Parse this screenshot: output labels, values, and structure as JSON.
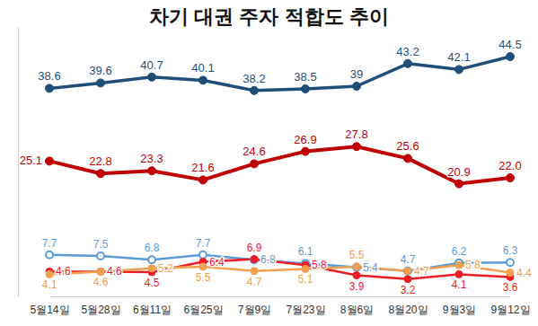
{
  "chart_data": {
    "type": "line",
    "title": "차기 대권 주자 적합도 추이",
    "categories": [
      "5월14일",
      "5월28일",
      "6월11일",
      "6월25일",
      "7월9일",
      "7월23일",
      "8월6일",
      "8월20일",
      "9월3일",
      "9월12일"
    ],
    "series": [
      {
        "color": "#1f4e79",
        "marker": "circle",
        "values": [
          38.6,
          39.6,
          40.7,
          40.1,
          38.2,
          38.5,
          39,
          43.2,
          42.1,
          44.5
        ]
      },
      {
        "color": "#c00000",
        "marker": "circle",
        "values": [
          25.1,
          22.8,
          23.3,
          21.6,
          24.6,
          26.9,
          27.8,
          25.6,
          20.9,
          22.0
        ],
        "value_labels": [
          "25.1",
          "22.8",
          "23.3",
          "21.6",
          "24.6",
          "26.9",
          "27.8",
          "25.6",
          "20.9",
          "22.0"
        ]
      },
      {
        "color": "#5b9bd5",
        "marker": "open-circle",
        "values": [
          7.7,
          7.5,
          6.8,
          7.7,
          6.8,
          6.1,
          5.4,
          4.7,
          6.2,
          6.3
        ]
      },
      {
        "color": "#ee1c25",
        "marker": "circle",
        "values": [
          4.6,
          4.6,
          4.5,
          6.4,
          6.9,
          5.8,
          3.9,
          3.2,
          4.1,
          3.6
        ]
      },
      {
        "color": "#f0a050",
        "marker": "circle",
        "values": [
          4.1,
          4.6,
          5.2,
          5.5,
          4.7,
          5.1,
          5.5,
          4.7,
          5.8,
          4.4
        ]
      }
    ],
    "ylim": [
      0,
      50
    ],
    "data_labels": true,
    "tick_labels": "x"
  }
}
